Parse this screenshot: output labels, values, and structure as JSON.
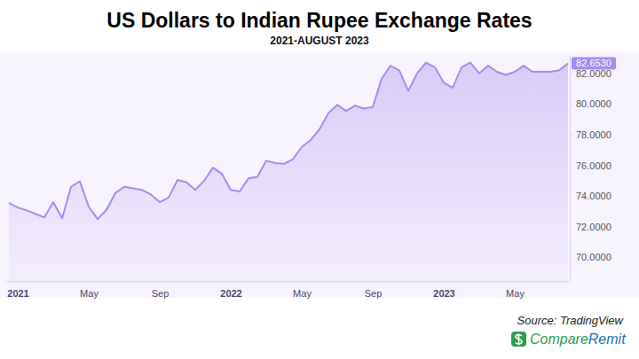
{
  "chart_data": {
    "type": "area",
    "title": "US Dollars to Indian Rupee Exchange Rates",
    "subtitle": "2021-AUGUST 2023",
    "source": "Source: TradingView",
    "brand": [
      "Compare",
      "Remit"
    ],
    "color": "#a58bef",
    "grid": false,
    "categories": [
      null,
      "2021",
      null,
      null,
      null,
      null,
      null,
      null,
      null,
      "May",
      null,
      null,
      null,
      null,
      null,
      null,
      null,
      "Sep",
      null,
      null,
      null,
      null,
      null,
      null,
      null,
      "2022",
      null,
      null,
      null,
      null,
      null,
      null,
      null,
      "May",
      null,
      null,
      null,
      null,
      null,
      null,
      null,
      "Sep",
      null,
      null,
      null,
      null,
      null,
      null,
      null,
      "2023",
      null,
      null,
      null,
      null,
      null,
      null,
      null,
      "May",
      null,
      null,
      null,
      null,
      null,
      null
    ],
    "values": [
      73.55,
      73.25,
      73.07,
      72.84,
      72.6,
      73.6,
      72.55,
      74.6,
      74.95,
      73.3,
      72.5,
      73.1,
      74.2,
      74.6,
      74.5,
      74.4,
      74.1,
      73.6,
      73.9,
      75.05,
      74.9,
      74.4,
      75.0,
      75.85,
      75.45,
      74.4,
      74.3,
      75.15,
      75.25,
      76.3,
      76.15,
      76.1,
      76.4,
      77.2,
      77.65,
      78.35,
      79.4,
      79.95,
      79.55,
      79.9,
      79.7,
      79.8,
      81.65,
      82.5,
      82.2,
      80.85,
      82.0,
      82.7,
      82.4,
      81.4,
      81.05,
      82.4,
      82.7,
      82.0,
      82.5,
      82.1,
      81.9,
      82.1,
      82.5,
      82.1,
      82.1,
      82.1,
      82.2,
      82.653
    ],
    "ylim": [
      68.4,
      83.2
    ],
    "yticks": [
      {
        "value": 70,
        "label": "70.0000"
      },
      {
        "value": 72,
        "label": "72.0000"
      },
      {
        "value": 74,
        "label": "74.0000"
      },
      {
        "value": 76,
        "label": "76.0000"
      },
      {
        "value": 78,
        "label": "78.0000"
      },
      {
        "value": 80,
        "label": "80.0000"
      },
      {
        "value": 82,
        "label": "82.0000"
      }
    ],
    "annotations": [
      {
        "label": "82.6530",
        "value": 82.653
      }
    ]
  }
}
